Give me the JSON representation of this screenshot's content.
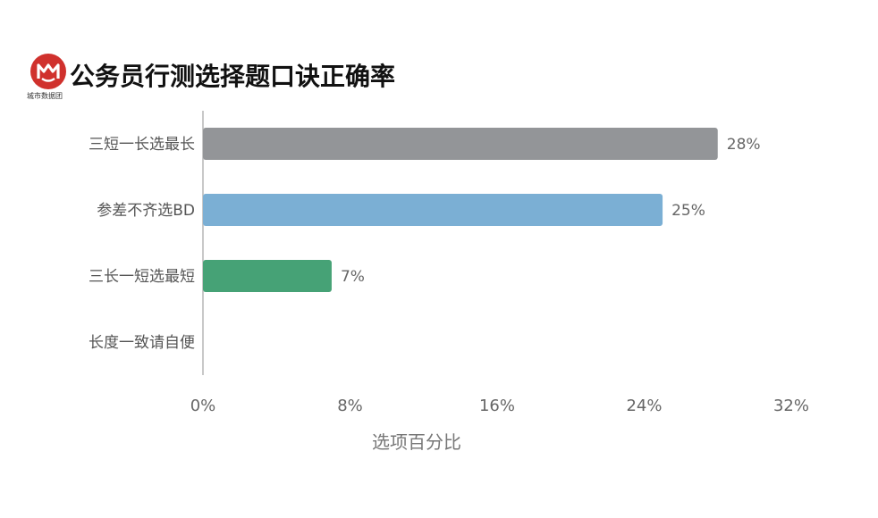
{
  "header": {
    "title": "公务员行测选择题口诀正确率",
    "logo_text": "城市数据团"
  },
  "chart_data": {
    "type": "bar",
    "orientation": "horizontal",
    "categories": [
      "三短一长选最长",
      "参差不齐选BD",
      "三长一短选最短",
      "长度一致请自便"
    ],
    "values": [
      28,
      25,
      7,
      0
    ],
    "value_labels": [
      "28%",
      "25%",
      "7%",
      ""
    ],
    "colors": [
      "#939598",
      "#7bafd4",
      "#46a276",
      "#ffffff"
    ],
    "xlim": [
      0,
      32
    ],
    "xticks": [
      "0%",
      "8%",
      "16%",
      "24%",
      "32%"
    ],
    "xlabel": "选项百分比",
    "grid": false
  }
}
